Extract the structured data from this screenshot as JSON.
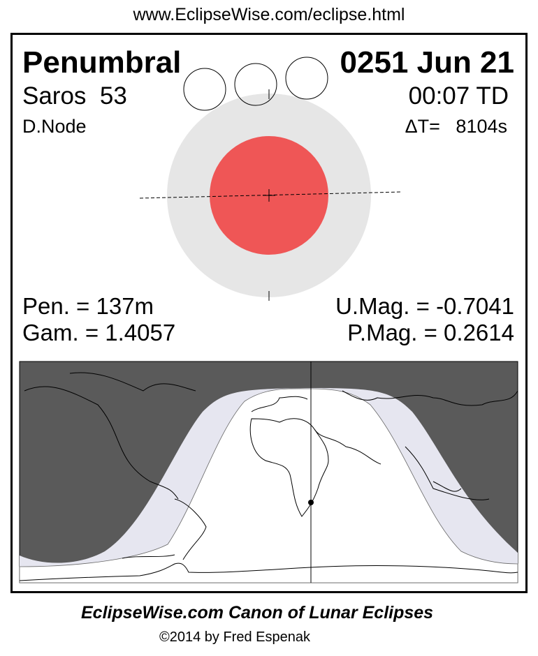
{
  "header_url": "www.EclipseWise.com/eclipse.html",
  "eclipse": {
    "type": "Penumbral",
    "date": "0251 Jun 21",
    "saros": "Saros  53",
    "time": "00:07 TD",
    "node": "D.Node",
    "delta_t": "ΔT=   8104s",
    "pen_duration": "Pen. = 137m",
    "gamma": "Gam. = 1.4057",
    "umbral_mag": "U.Mag. = -0.7041",
    "penumbral_mag": "P.Mag. = 0.2614"
  },
  "colors": {
    "umbra": "#ef5656",
    "penumbra": "#e6e6e6",
    "night": "#5a5a5a",
    "penumbral_visibility": "#e6e6f0"
  },
  "footer": {
    "title": "EclipseWise.com Canon of Lunar Eclipses",
    "copyright": "©2014 by Fred Espenak"
  }
}
